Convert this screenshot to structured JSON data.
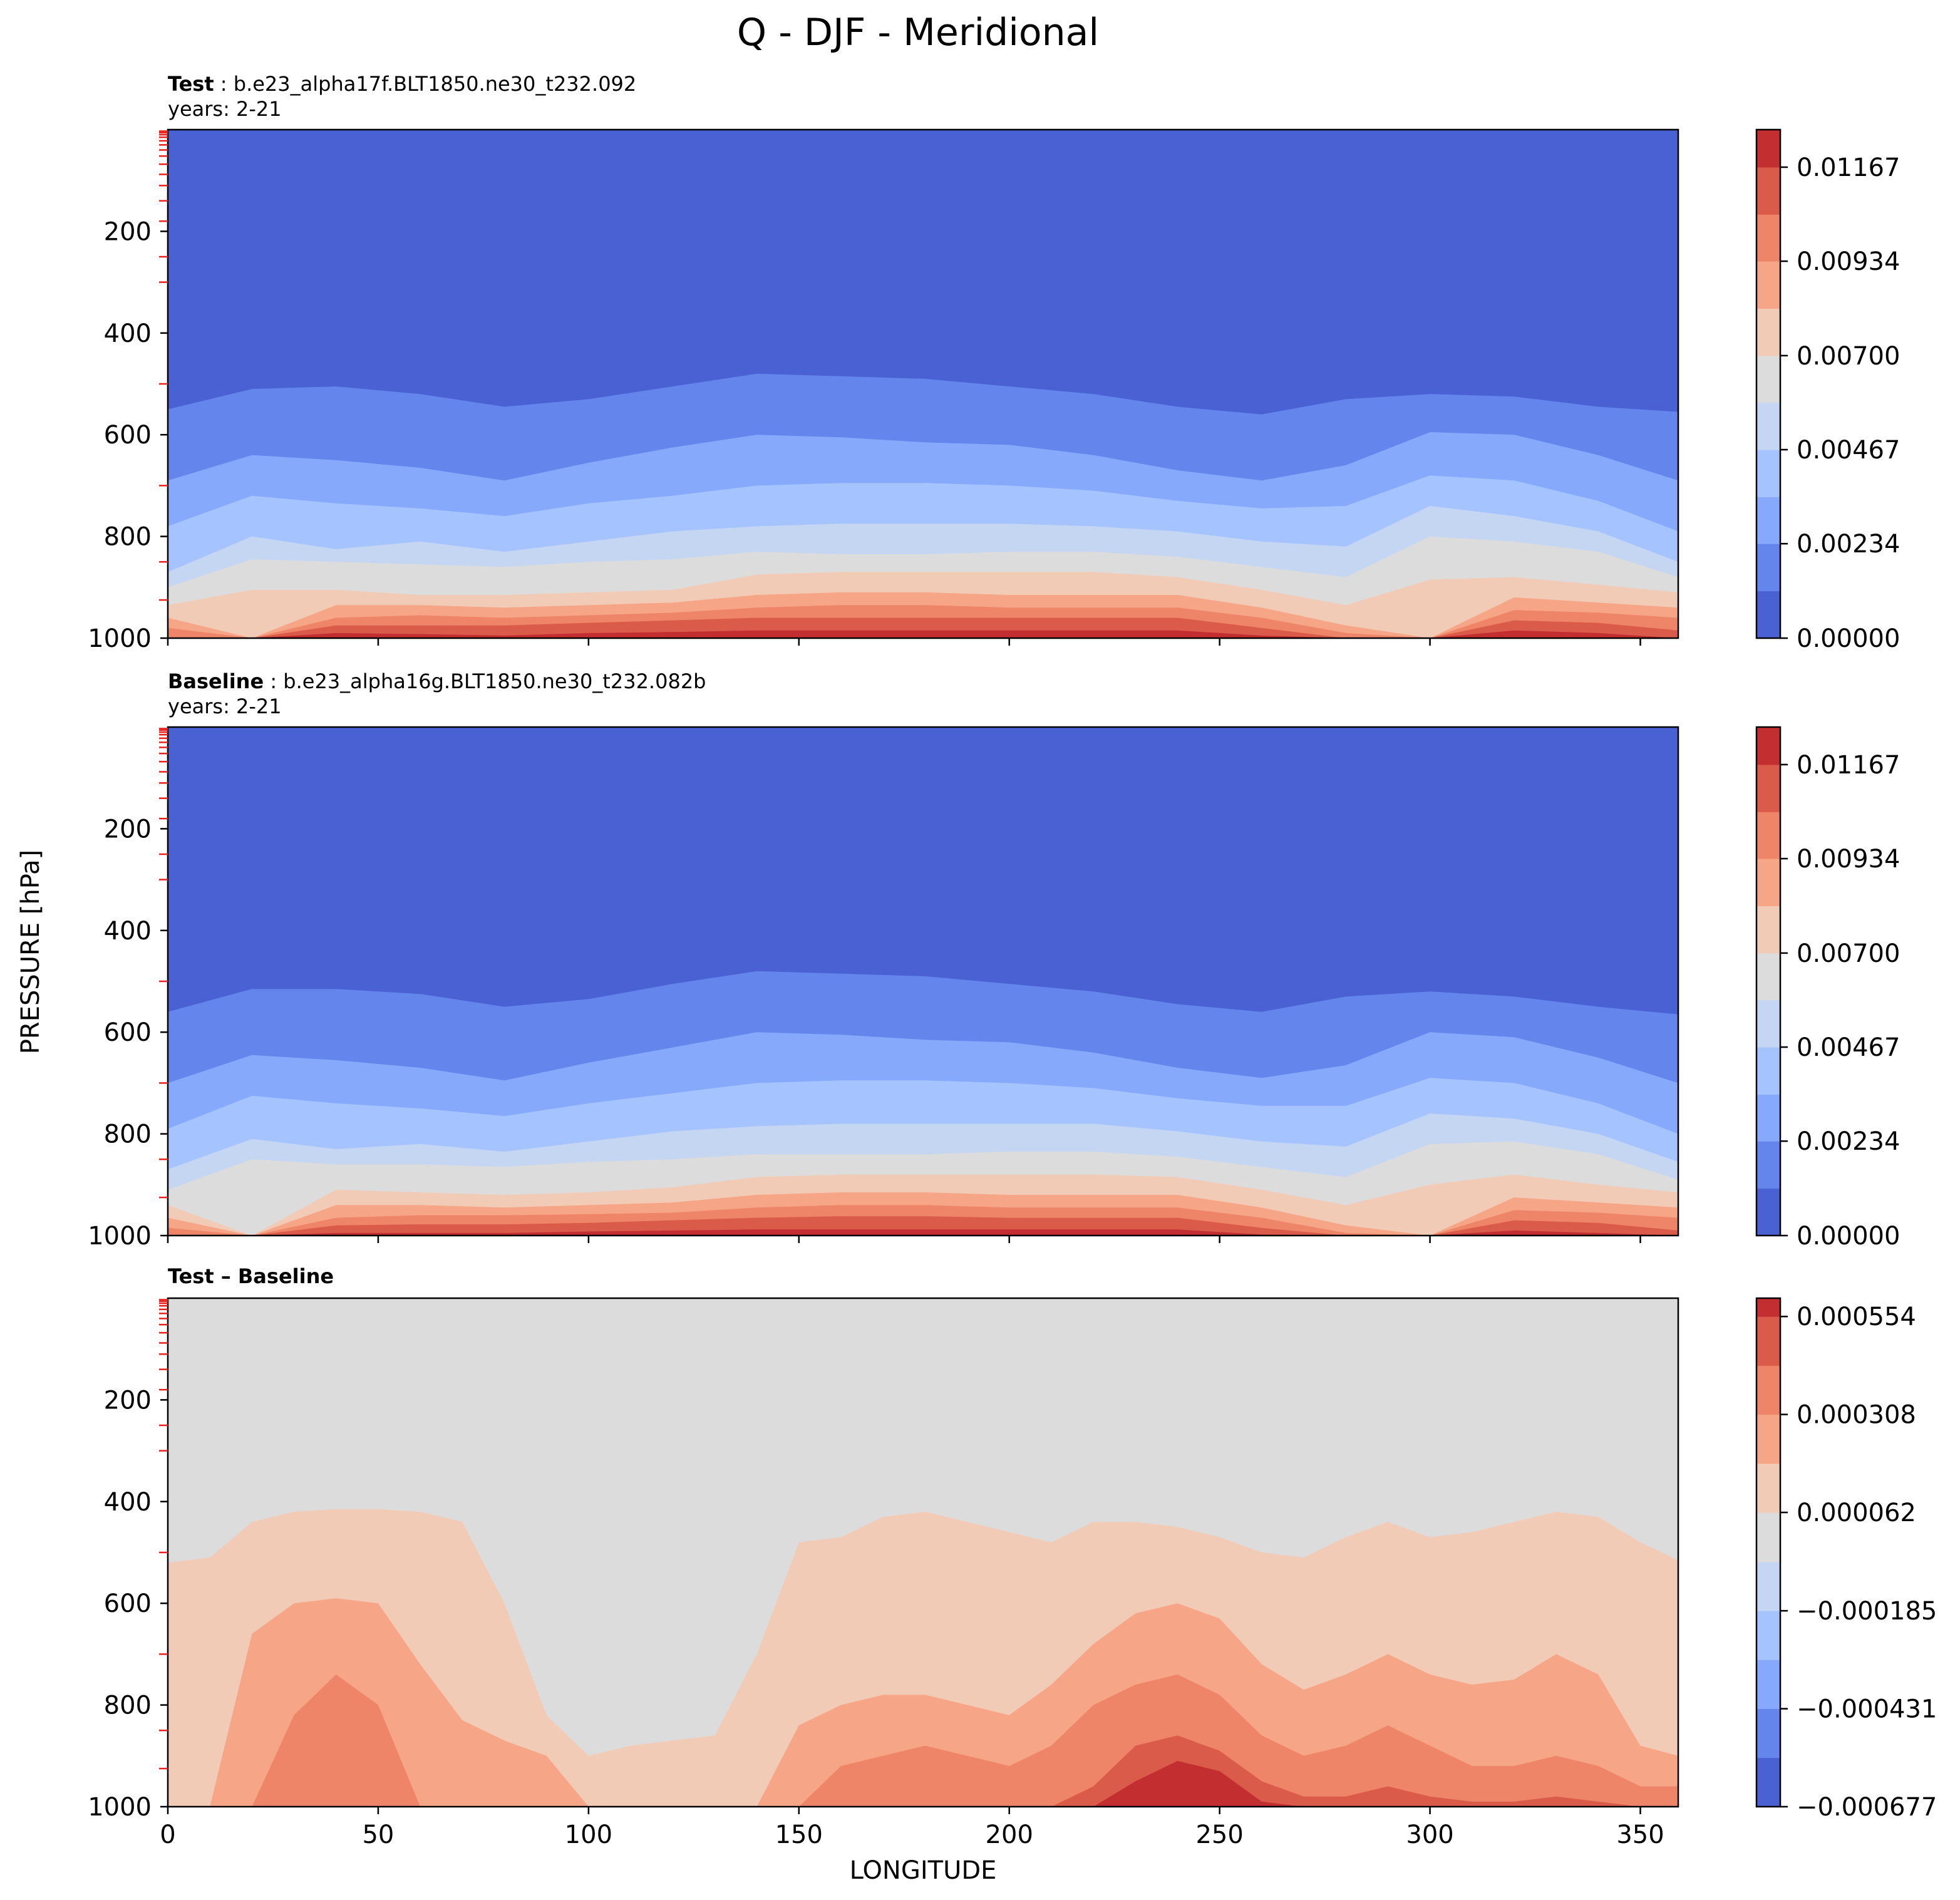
{
  "chart_data": {
    "type": "heatmap",
    "title": "Q - DJF - Meridional",
    "ylabel": "PRESSURE [hPa]",
    "xlabel": "LONGITUDE",
    "x_ticks": [
      0,
      50,
      100,
      150,
      200,
      250,
      300,
      350
    ],
    "xlim": [
      0,
      359
    ],
    "y_ticks": [
      200,
      400,
      600,
      800,
      1000
    ],
    "ylim": [
      1000,
      0
    ],
    "panels": [
      {
        "name": "test",
        "label_bold": "Test",
        "label_text": " : b.e23_alpha17f.BLT1850.ne30_t232.092",
        "years": "years: 2-21",
        "colorbar_ticks": [
          "0.01167",
          "0.00934",
          "0.00700",
          "0.00467",
          "0.00234",
          "0.00000"
        ],
        "colorbar_range": [
          0.0,
          0.0126
        ],
        "contour_levels": [
          0.0,
          0.00117,
          0.00234,
          0.0035,
          0.00467,
          0.00584,
          0.007,
          0.00817,
          0.00934,
          0.0105,
          0.01167
        ],
        "colors": [
          "#4961d2",
          "#6485ec",
          "#86a9fc",
          "#a5c3fe",
          "#c5d6f2",
          "#dddcdc",
          "#f2cbb7",
          "#f6a586",
          "#ee8468",
          "#db5b4a",
          "#c32e31"
        ],
        "profile_x": [
          0,
          20,
          40,
          60,
          80,
          100,
          120,
          140,
          160,
          180,
          200,
          220,
          240,
          260,
          280,
          300,
          320,
          340,
          359
        ],
        "boundaries_hPa": [
          [
            550,
            510,
            505,
            520,
            545,
            530,
            505,
            480,
            485,
            490,
            505,
            520,
            545,
            560,
            530,
            520,
            525,
            545,
            555
          ],
          [
            690,
            640,
            650,
            665,
            690,
            655,
            625,
            600,
            605,
            615,
            620,
            640,
            670,
            690,
            660,
            595,
            600,
            640,
            690
          ],
          [
            780,
            720,
            735,
            745,
            760,
            735,
            720,
            700,
            695,
            695,
            700,
            710,
            730,
            745,
            740,
            680,
            690,
            730,
            790
          ],
          [
            870,
            800,
            825,
            810,
            830,
            810,
            790,
            780,
            775,
            775,
            775,
            780,
            790,
            810,
            820,
            740,
            760,
            790,
            850
          ],
          [
            900,
            845,
            850,
            855,
            860,
            850,
            845,
            830,
            835,
            835,
            830,
            830,
            840,
            860,
            880,
            800,
            810,
            830,
            880
          ],
          [
            935,
            905,
            905,
            915,
            915,
            910,
            905,
            875,
            870,
            870,
            870,
            870,
            880,
            905,
            935,
            885,
            880,
            895,
            910
          ],
          [
            960,
            1000,
            935,
            935,
            940,
            935,
            930,
            915,
            910,
            910,
            915,
            915,
            915,
            940,
            975,
            1000,
            920,
            930,
            940
          ],
          [
            980,
            1000,
            960,
            955,
            960,
            955,
            950,
            940,
            935,
            935,
            940,
            940,
            940,
            960,
            990,
            1000,
            945,
            950,
            960
          ],
          [
            1000,
            1000,
            975,
            975,
            975,
            970,
            965,
            960,
            960,
            960,
            960,
            960,
            960,
            980,
            1000,
            1000,
            965,
            970,
            985
          ],
          [
            1000,
            1000,
            990,
            992,
            995,
            990,
            988,
            985,
            985,
            985,
            985,
            985,
            985,
            995,
            1000,
            1000,
            985,
            990,
            1000
          ]
        ]
      },
      {
        "name": "baseline",
        "label_bold": "Baseline",
        "label_text": " : b.e23_alpha16g.BLT1850.ne30_t232.082b",
        "years": "years: 2-21",
        "colorbar_ticks": [
          "0.01167",
          "0.00934",
          "0.00700",
          "0.00467",
          "0.00234",
          "0.00000"
        ],
        "colorbar_range": [
          0.0,
          0.0126
        ],
        "contour_levels": [
          0.0,
          0.00117,
          0.00234,
          0.0035,
          0.00467,
          0.00584,
          0.007,
          0.00817,
          0.00934,
          0.0105,
          0.01167
        ],
        "colors": [
          "#4961d2",
          "#6485ec",
          "#86a9fc",
          "#a5c3fe",
          "#c5d6f2",
          "#dddcdc",
          "#f2cbb7",
          "#f6a586",
          "#ee8468",
          "#db5b4a",
          "#c32e31"
        ],
        "profile_x": [
          0,
          20,
          40,
          60,
          80,
          100,
          120,
          140,
          160,
          180,
          200,
          220,
          240,
          260,
          280,
          300,
          320,
          340,
          359
        ],
        "boundaries_hPa": [
          [
            560,
            515,
            515,
            525,
            550,
            535,
            505,
            480,
            485,
            490,
            505,
            520,
            545,
            560,
            530,
            520,
            530,
            550,
            565
          ],
          [
            700,
            645,
            655,
            670,
            695,
            660,
            630,
            600,
            605,
            615,
            620,
            640,
            670,
            690,
            665,
            600,
            610,
            650,
            700
          ],
          [
            790,
            725,
            740,
            750,
            765,
            740,
            720,
            700,
            695,
            695,
            700,
            710,
            730,
            745,
            745,
            690,
            700,
            740,
            800
          ],
          [
            870,
            810,
            830,
            820,
            835,
            815,
            795,
            785,
            780,
            780,
            780,
            780,
            795,
            815,
            825,
            760,
            770,
            800,
            855
          ],
          [
            910,
            850,
            860,
            860,
            865,
            855,
            850,
            840,
            840,
            840,
            835,
            835,
            845,
            865,
            885,
            820,
            815,
            840,
            890
          ],
          [
            940,
            1000,
            910,
            915,
            920,
            915,
            905,
            885,
            880,
            880,
            880,
            880,
            885,
            910,
            940,
            900,
            880,
            900,
            915
          ],
          [
            965,
            1000,
            940,
            940,
            945,
            940,
            935,
            920,
            915,
            915,
            920,
            920,
            920,
            945,
            980,
            1000,
            925,
            935,
            945
          ],
          [
            985,
            1000,
            965,
            960,
            960,
            958,
            955,
            945,
            940,
            940,
            945,
            945,
            945,
            965,
            995,
            1000,
            950,
            955,
            965
          ],
          [
            1000,
            1000,
            980,
            978,
            978,
            975,
            970,
            965,
            962,
            962,
            965,
            965,
            965,
            985,
            1000,
            1000,
            970,
            975,
            990
          ],
          [
            1000,
            1000,
            995,
            995,
            995,
            992,
            990,
            988,
            988,
            988,
            988,
            988,
            988,
            998,
            1000,
            1000,
            990,
            995,
            1000
          ]
        ]
      },
      {
        "name": "difference",
        "label_bold": "Test – Baseline",
        "label_text": "",
        "years": "",
        "colorbar_ticks": [
          "0.000554",
          "0.000308",
          "0.000062",
          "−0.000185",
          "−0.000431",
          "−0.000677"
        ],
        "colorbar_range": [
          -0.000677,
          0.0006
        ],
        "contour_levels": [
          -0.000677,
          -0.000554,
          -0.000431,
          -0.000308,
          -0.000185,
          -6.2e-05,
          6.2e-05,
          0.000185,
          0.000308,
          0.000431,
          0.000554
        ],
        "colors": [
          "#4961d2",
          "#6485ec",
          "#86a9fc",
          "#a5c3fe",
          "#c5d6f2",
          "#dddcdc",
          "#f2cbb7",
          "#f6a586",
          "#ee8468",
          "#db5b4a",
          "#c32e31"
        ],
        "profile_x": [
          0,
          10,
          20,
          30,
          40,
          50,
          60,
          70,
          80,
          90,
          100,
          110,
          120,
          130,
          140,
          150,
          160,
          170,
          180,
          190,
          200,
          210,
          220,
          230,
          240,
          250,
          260,
          270,
          280,
          290,
          300,
          310,
          320,
          330,
          340,
          350,
          359
        ],
        "diff_base_index": 5,
        "boundaries_hPa": [
          [
            520,
            510,
            440,
            420,
            415,
            415,
            420,
            440,
            600,
            820,
            900,
            880,
            870,
            860,
            700,
            480,
            470,
            430,
            420,
            440,
            460,
            480,
            440,
            440,
            450,
            470,
            500,
            510,
            470,
            440,
            470,
            460,
            440,
            420,
            430,
            480,
            515
          ],
          [
            1000,
            1000,
            660,
            600,
            590,
            600,
            720,
            830,
            870,
            900,
            1000,
            1000,
            1000,
            1000,
            1000,
            840,
            800,
            780,
            780,
            800,
            820,
            760,
            680,
            620,
            600,
            630,
            720,
            770,
            740,
            700,
            740,
            760,
            750,
            700,
            740,
            880,
            900
          ],
          [
            1000,
            1000,
            1000,
            820,
            740,
            800,
            1000,
            1000,
            1000,
            1000,
            1000,
            1000,
            1000,
            1000,
            1000,
            1000,
            920,
            900,
            880,
            900,
            920,
            880,
            800,
            760,
            740,
            780,
            860,
            900,
            880,
            840,
            880,
            920,
            920,
            900,
            920,
            960,
            960
          ],
          [
            1000,
            1000,
            1000,
            1000,
            1000,
            1000,
            1000,
            1000,
            1000,
            1000,
            1000,
            1000,
            1000,
            1000,
            1000,
            1000,
            1000,
            1000,
            1000,
            1000,
            1000,
            1000,
            960,
            880,
            860,
            890,
            950,
            980,
            980,
            960,
            980,
            990,
            990,
            980,
            990,
            1000,
            1000
          ],
          [
            1000,
            1000,
            1000,
            1000,
            1000,
            1000,
            1000,
            1000,
            1000,
            1000,
            1000,
            1000,
            1000,
            1000,
            1000,
            1000,
            1000,
            1000,
            1000,
            1000,
            1000,
            1000,
            1000,
            950,
            910,
            930,
            990,
            1000,
            1000,
            1000,
            1000,
            1000,
            1000,
            1000,
            1000,
            1000,
            1000
          ]
        ]
      }
    ]
  }
}
